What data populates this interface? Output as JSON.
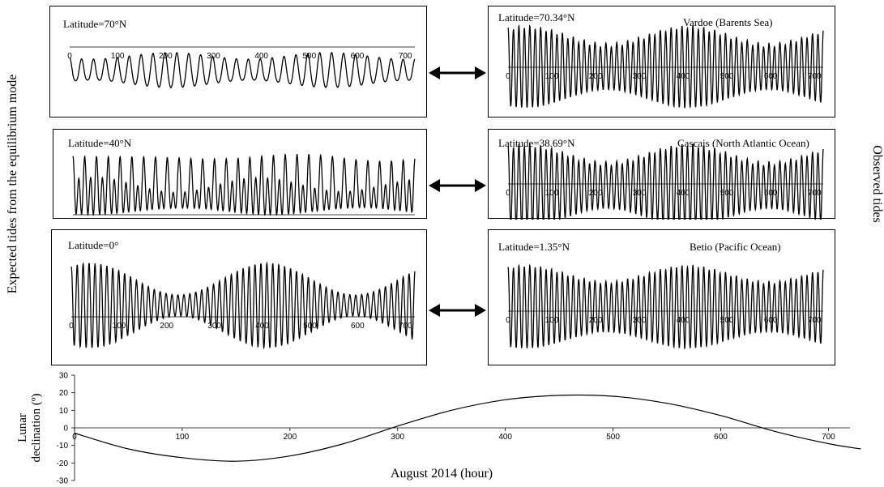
{
  "left_axis_label": "Expected tides from the equilibrium mode",
  "right_axis_label": "Observed tides",
  "panels": {
    "exp70": {
      "latitude": "Latitude=70°N",
      "station": ""
    },
    "exp40": {
      "latitude": "Latitude=40°N",
      "station": ""
    },
    "exp0": {
      "latitude": "Latitude=0°",
      "station": ""
    },
    "obs70": {
      "latitude": "Latitude=70.34°N",
      "station": "Vardoe (Barents Sea)"
    },
    "obs38": {
      "latitude": "Latitude=38.69°N",
      "station": "Cascais (North Atlantic Ocean)"
    },
    "obs1": {
      "latitude": "Latitude=1.35°N",
      "station": "Betio (Pacific Ocean)"
    }
  },
  "tide_ticks": [
    "0",
    "100",
    "200",
    "300",
    "400",
    "500",
    "600",
    "700"
  ],
  "arrow_icon": "double-headed-arrow",
  "chart_data": [
    {
      "type": "line",
      "title": "",
      "series": [
        {
          "name": "",
          "signal": "tide"
        }
      ],
      "x_start": 0,
      "x_end": 720,
      "diurnal": 1.0,
      "semidiurnal": 0.1,
      "spring_neap": 0.3,
      "trend": 0
    },
    {
      "type": "line",
      "title": "",
      "series": [
        {
          "name": "",
          "signal": "tide"
        }
      ],
      "x_start": 0,
      "x_end": 720,
      "diurnal": 0.55,
      "semidiurnal": 0.75,
      "spring_neap": 0.35,
      "trend": 0
    },
    {
      "type": "line",
      "title": "",
      "series": [
        {
          "name": "",
          "signal": "tide"
        }
      ],
      "x_start": 0,
      "x_end": 720,
      "diurnal": 0.0,
      "semidiurnal": 1.0,
      "spring_neap": 0.75,
      "trend": 0
    },
    {
      "type": "line",
      "title": "",
      "series": [
        {
          "name": "",
          "signal": "tide"
        }
      ],
      "x_start": 0,
      "x_end": 720,
      "diurnal": 0.05,
      "semidiurnal": 1.0,
      "spring_neap": 0.45,
      "trend": 0
    },
    {
      "type": "line",
      "title": "",
      "series": [
        {
          "name": "",
          "signal": "tide"
        }
      ],
      "x_start": 0,
      "x_end": 720,
      "diurnal": 0.05,
      "semidiurnal": 1.0,
      "spring_neap": 0.45,
      "trend": 0
    },
    {
      "type": "line",
      "title": "",
      "series": [
        {
          "name": "",
          "signal": "tide"
        }
      ],
      "x_start": 0,
      "x_end": 720,
      "diurnal": 0.03,
      "semidiurnal": 1.0,
      "spring_neap": 0.4,
      "trend": 0
    },
    {
      "type": "line",
      "title": "",
      "xlabel": "August  2014 (hour)",
      "ylabel": "Lunar declination (º)",
      "ylim": [
        -30,
        30
      ],
      "xlim": [
        0,
        720
      ],
      "yticks": [
        "30",
        "20",
        "10",
        "0",
        "-10",
        "-20",
        "-30"
      ],
      "xticks": [
        "0",
        "100",
        "200",
        "300",
        "400",
        "500",
        "600",
        "700"
      ],
      "series": [
        {
          "name": "",
          "x": [
            0,
            50,
            100,
            150,
            200,
            250,
            300,
            350,
            400,
            450,
            500,
            550,
            600,
            650,
            700,
            730
          ],
          "y": [
            -3,
            -12,
            -17,
            -19,
            -16,
            -9,
            1,
            10,
            16,
            18.5,
            18,
            14,
            7,
            -2,
            -9,
            -12
          ]
        }
      ]
    }
  ]
}
